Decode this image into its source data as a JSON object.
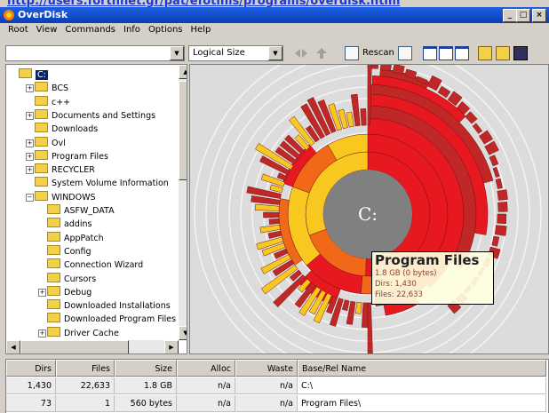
{
  "link": "http://users.forthnet.gr/pat/efotinis/programs/overdisk.html",
  "window": {
    "title": "OverDisk"
  },
  "menu": [
    "Root",
    "View",
    "Commands",
    "Info",
    "Options",
    "Help"
  ],
  "toolbar": {
    "size_mode": "Logical Size",
    "rescan": "Rescan"
  },
  "tree": {
    "label": "C:",
    "children": [
      {
        "label": "BCS"
      },
      {
        "label": "c++"
      },
      {
        "label": "Documents and Settings"
      },
      {
        "label": "Downloads"
      },
      {
        "label": "Ovl"
      },
      {
        "label": "Program Files"
      },
      {
        "label": "RECYCLER"
      },
      {
        "label": "System Volume Information"
      },
      {
        "label": "WINDOWS",
        "children": [
          {
            "label": "ASFW_DATA"
          },
          {
            "label": "addins"
          },
          {
            "label": "AppPatch"
          },
          {
            "label": "Config"
          },
          {
            "label": "Connection Wizard"
          },
          {
            "label": "Cursors"
          },
          {
            "label": "Debug"
          },
          {
            "label": "Downloaded Installations"
          },
          {
            "label": "Downloaded Program Files"
          },
          {
            "label": "Driver Cache"
          }
        ]
      }
    ]
  },
  "chart": {
    "center": "C:"
  },
  "tooltip": {
    "title": "Program Files",
    "lines": [
      "1.8 GB (0 bytes)",
      "Dirs: 1,430",
      "Files: 22,633"
    ]
  },
  "table": {
    "headers": [
      "Dirs",
      "Files",
      "Size",
      "Alloc",
      "Waste",
      "Base/Rel Name"
    ],
    "rows": [
      [
        "1,430",
        "22,633",
        "1.8 GB",
        "n/a",
        "n/a",
        "C:\\"
      ],
      [
        "73",
        "1",
        "560 bytes",
        "n/a",
        "n/a",
        "Program Files\\"
      ]
    ]
  }
}
